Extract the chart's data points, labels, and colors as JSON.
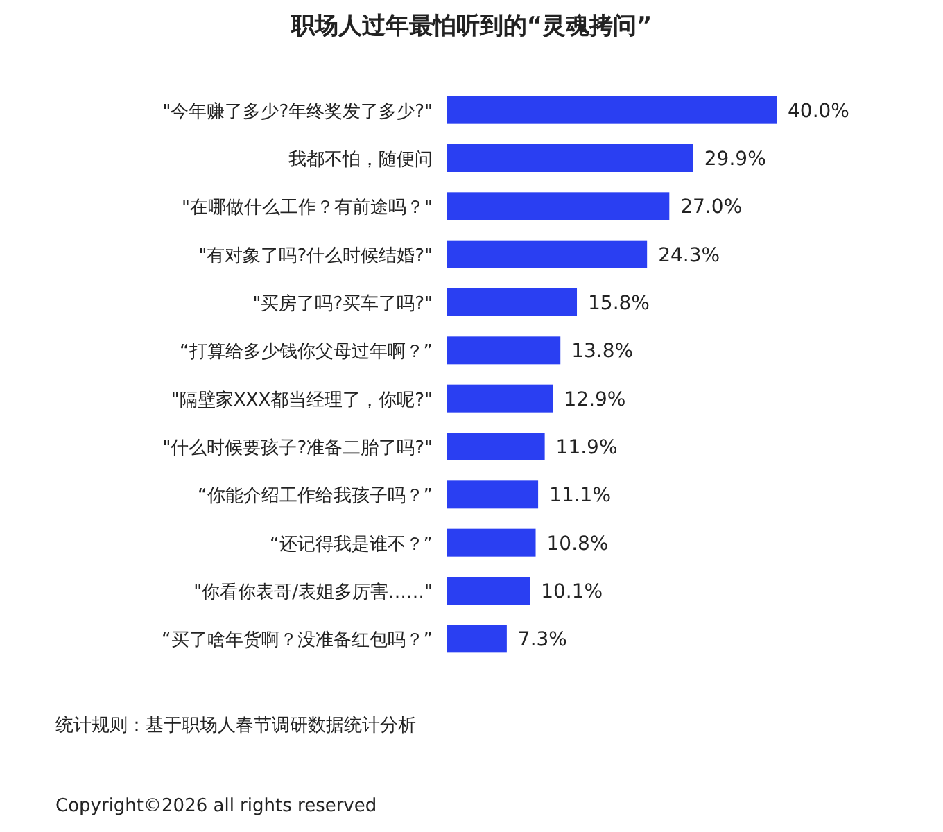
{
  "chart_data": {
    "type": "bar",
    "orientation": "horizontal",
    "title": "职场人过年最怕听到的“灵魂拷问”",
    "color": "#2a3ff2",
    "categories": [
      "\"今年赚了多少?年终奖发了多少?\"",
      "我都不怕，随便问",
      "\"在哪做什么工作？有前途吗？\"",
      "\"有对象了吗?什么时候结婚?\"",
      "\"买房了吗?买车了吗?\"",
      "“打算给多少钱你父母过年啊？”",
      "\"隔壁家XXX都当经理了，你呢?\"",
      "\"什么时候要孩子?准备二胎了吗?\"",
      "“你能介绍工作给我孩子吗？”",
      "“还记得我是谁不？”",
      "\"你看你表哥/表姐多厉害……\"",
      "“买了啥年货啊？没准备红包吗？”"
    ],
    "values": [
      40.0,
      29.9,
      27.0,
      24.3,
      15.8,
      13.8,
      12.9,
      11.9,
      11.1,
      10.8,
      10.1,
      7.3
    ],
    "value_labels": [
      "40.0%",
      "29.9%",
      "27.0%",
      "24.3%",
      "15.8%",
      "13.8%",
      "12.9%",
      "11.9%",
      "11.1%",
      "10.8%",
      "10.1%",
      "7.3%"
    ],
    "annotations": [
      "统计规则：基于职场人春节调研数据统计分析",
      "Copyright©2026 all rights reserved"
    ]
  }
}
